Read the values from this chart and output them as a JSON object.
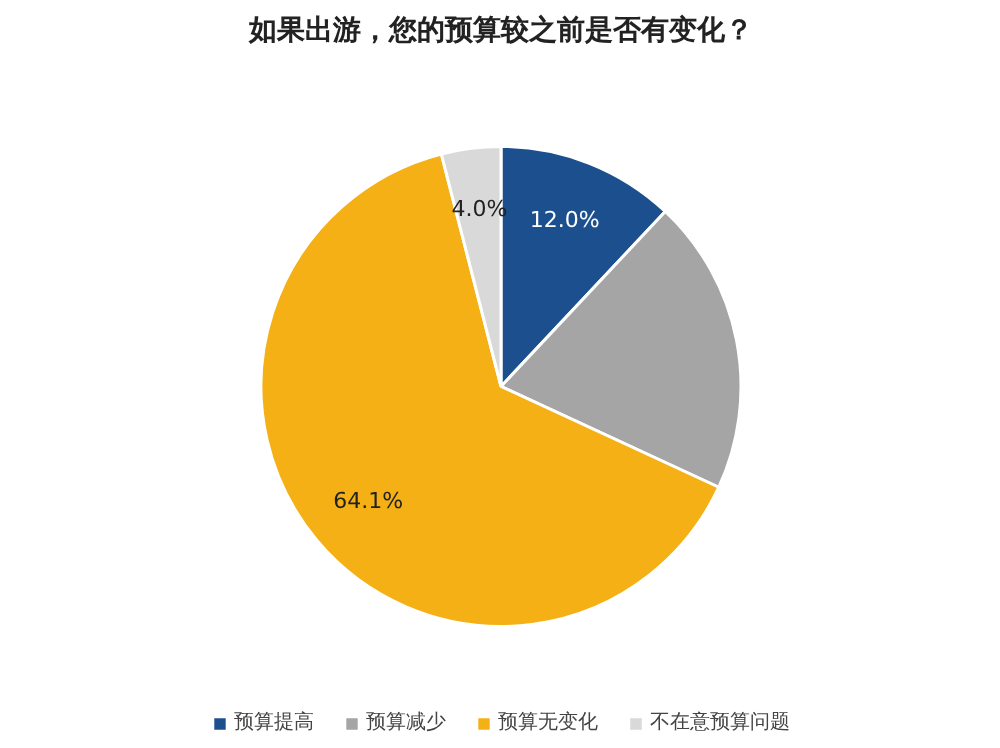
{
  "chart_data": {
    "type": "pie",
    "title": "如果出游，您的预算较之前是否有变化？",
    "categories": [
      "预算提高",
      "预算减少",
      "预算无变化",
      "不在意预算问题"
    ],
    "values": [
      12.0,
      19.9,
      64.1,
      4.0
    ],
    "colors": [
      "#1b4f8e",
      "#a5a5a5",
      "#f5b015",
      "#d9d9d9"
    ],
    "value_labels": [
      "12.0%",
      null,
      "64.1%",
      "4.0%"
    ],
    "legend": "bottom"
  }
}
